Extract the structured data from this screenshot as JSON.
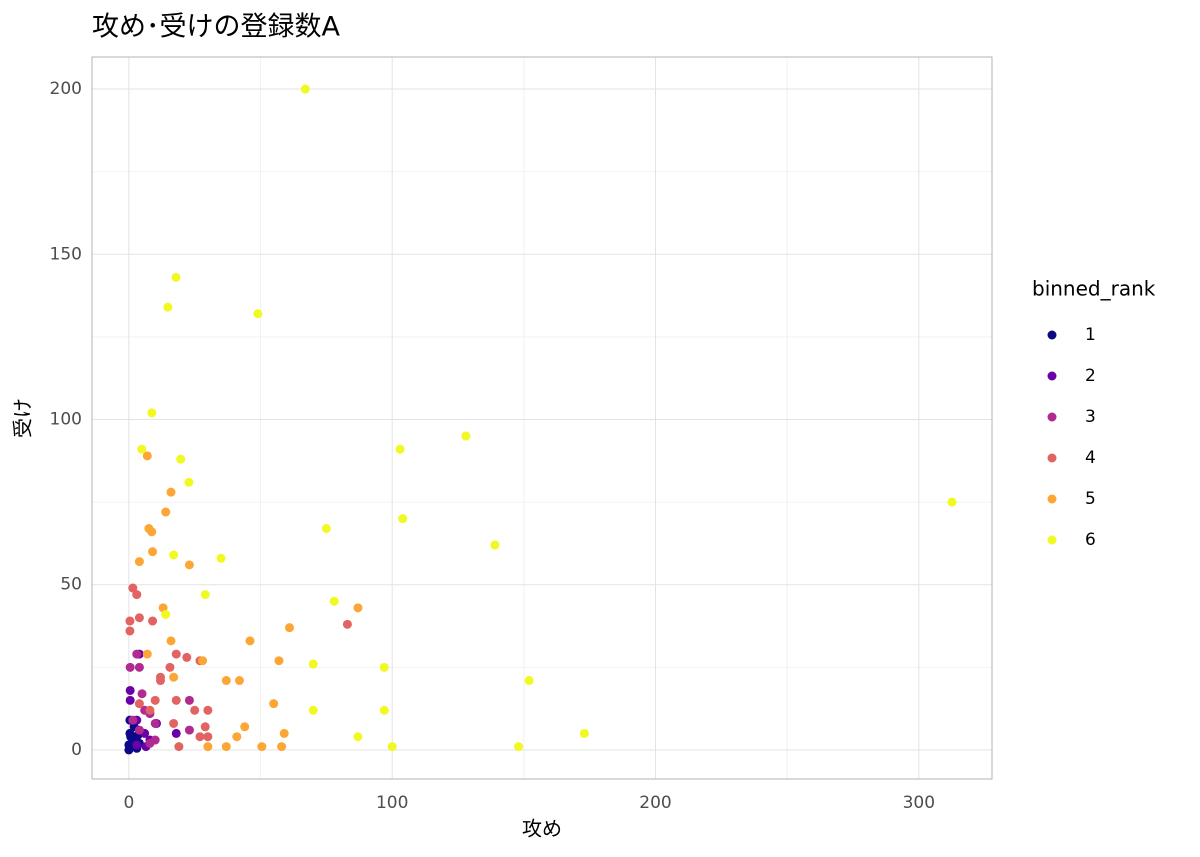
{
  "chart_data": {
    "type": "scatter",
    "title": "攻め･受けの登録数A",
    "x_label": "攻め",
    "y_label": "受け",
    "legend_title": "binned_rank",
    "legend_position": "right",
    "grid": true,
    "xlim": [
      -14,
      327.8
    ],
    "ylim": [
      -8.8,
      209.7
    ],
    "xticks": [
      0,
      100,
      200,
      300
    ],
    "yticks": [
      0,
      50,
      100,
      150,
      200
    ],
    "series": [
      {
        "name": "1",
        "color": "#0d0887",
        "x": [
          0.4,
          0.4,
          1.5,
          0,
          3,
          4,
          0.7,
          2,
          0,
          3.5
        ],
        "y": [
          9,
          5,
          3,
          1.5,
          0.5,
          2,
          4,
          7,
          0,
          4.5
        ]
      },
      {
        "name": "2",
        "color": "#6a00a8",
        "x": [
          0.5,
          0.5,
          4,
          18,
          10.5,
          3,
          6,
          8,
          3,
          6.5
        ],
        "y": [
          18,
          15,
          29,
          5,
          8,
          9,
          5,
          3,
          1.5,
          1
        ]
      },
      {
        "name": "3",
        "color": "#b12a90",
        "x": [
          0.5,
          4,
          3,
          23,
          5,
          6,
          8,
          10,
          1.5,
          4,
          10,
          8,
          23
        ],
        "y": [
          25,
          25,
          29,
          15,
          17,
          12,
          11,
          8,
          9,
          6,
          3,
          2,
          6
        ]
      },
      {
        "name": "4",
        "color": "#e16462",
        "x": [
          1.5,
          3,
          0.4,
          4,
          9,
          0.4,
          83,
          18,
          22,
          27,
          15.6,
          12,
          12,
          18,
          10,
          30,
          25,
          29,
          27,
          19,
          4,
          17,
          30,
          8
        ],
        "y": [
          49,
          47,
          39,
          40,
          39,
          36,
          38,
          29,
          28,
          27,
          25,
          21,
          22,
          15,
          15,
          12,
          12,
          7,
          4,
          1,
          14,
          8,
          4,
          12
        ]
      },
      {
        "name": "5",
        "color": "#fca636",
        "x": [
          7,
          16,
          14,
          7.6,
          8.7,
          9,
          4,
          23,
          13,
          87,
          61,
          46,
          16,
          7,
          57,
          28,
          37,
          42,
          17,
          55,
          44,
          41,
          59,
          37,
          50.5,
          58,
          30
        ],
        "y": [
          89,
          78,
          72,
          67,
          66,
          60,
          57,
          56,
          43,
          43,
          37,
          33,
          33,
          29,
          27,
          27,
          21,
          21,
          22,
          14,
          7,
          4,
          5,
          1,
          1,
          1,
          1
        ]
      },
      {
        "name": "6",
        "color": "#f0f921",
        "x": [
          67,
          17.9,
          14.8,
          49,
          8.7,
          4.9,
          103,
          128,
          19.7,
          22.8,
          104,
          75,
          139,
          312.6,
          17,
          35,
          29,
          78,
          14,
          70,
          97,
          152,
          70,
          97,
          87,
          173,
          100,
          148
        ],
        "y": [
          200,
          143,
          134,
          132,
          102,
          91,
          91,
          95,
          88,
          81,
          70,
          67,
          62,
          75,
          59,
          58,
          47,
          45,
          41,
          26,
          25,
          21,
          12,
          12,
          4,
          5,
          1,
          1
        ]
      }
    ]
  }
}
